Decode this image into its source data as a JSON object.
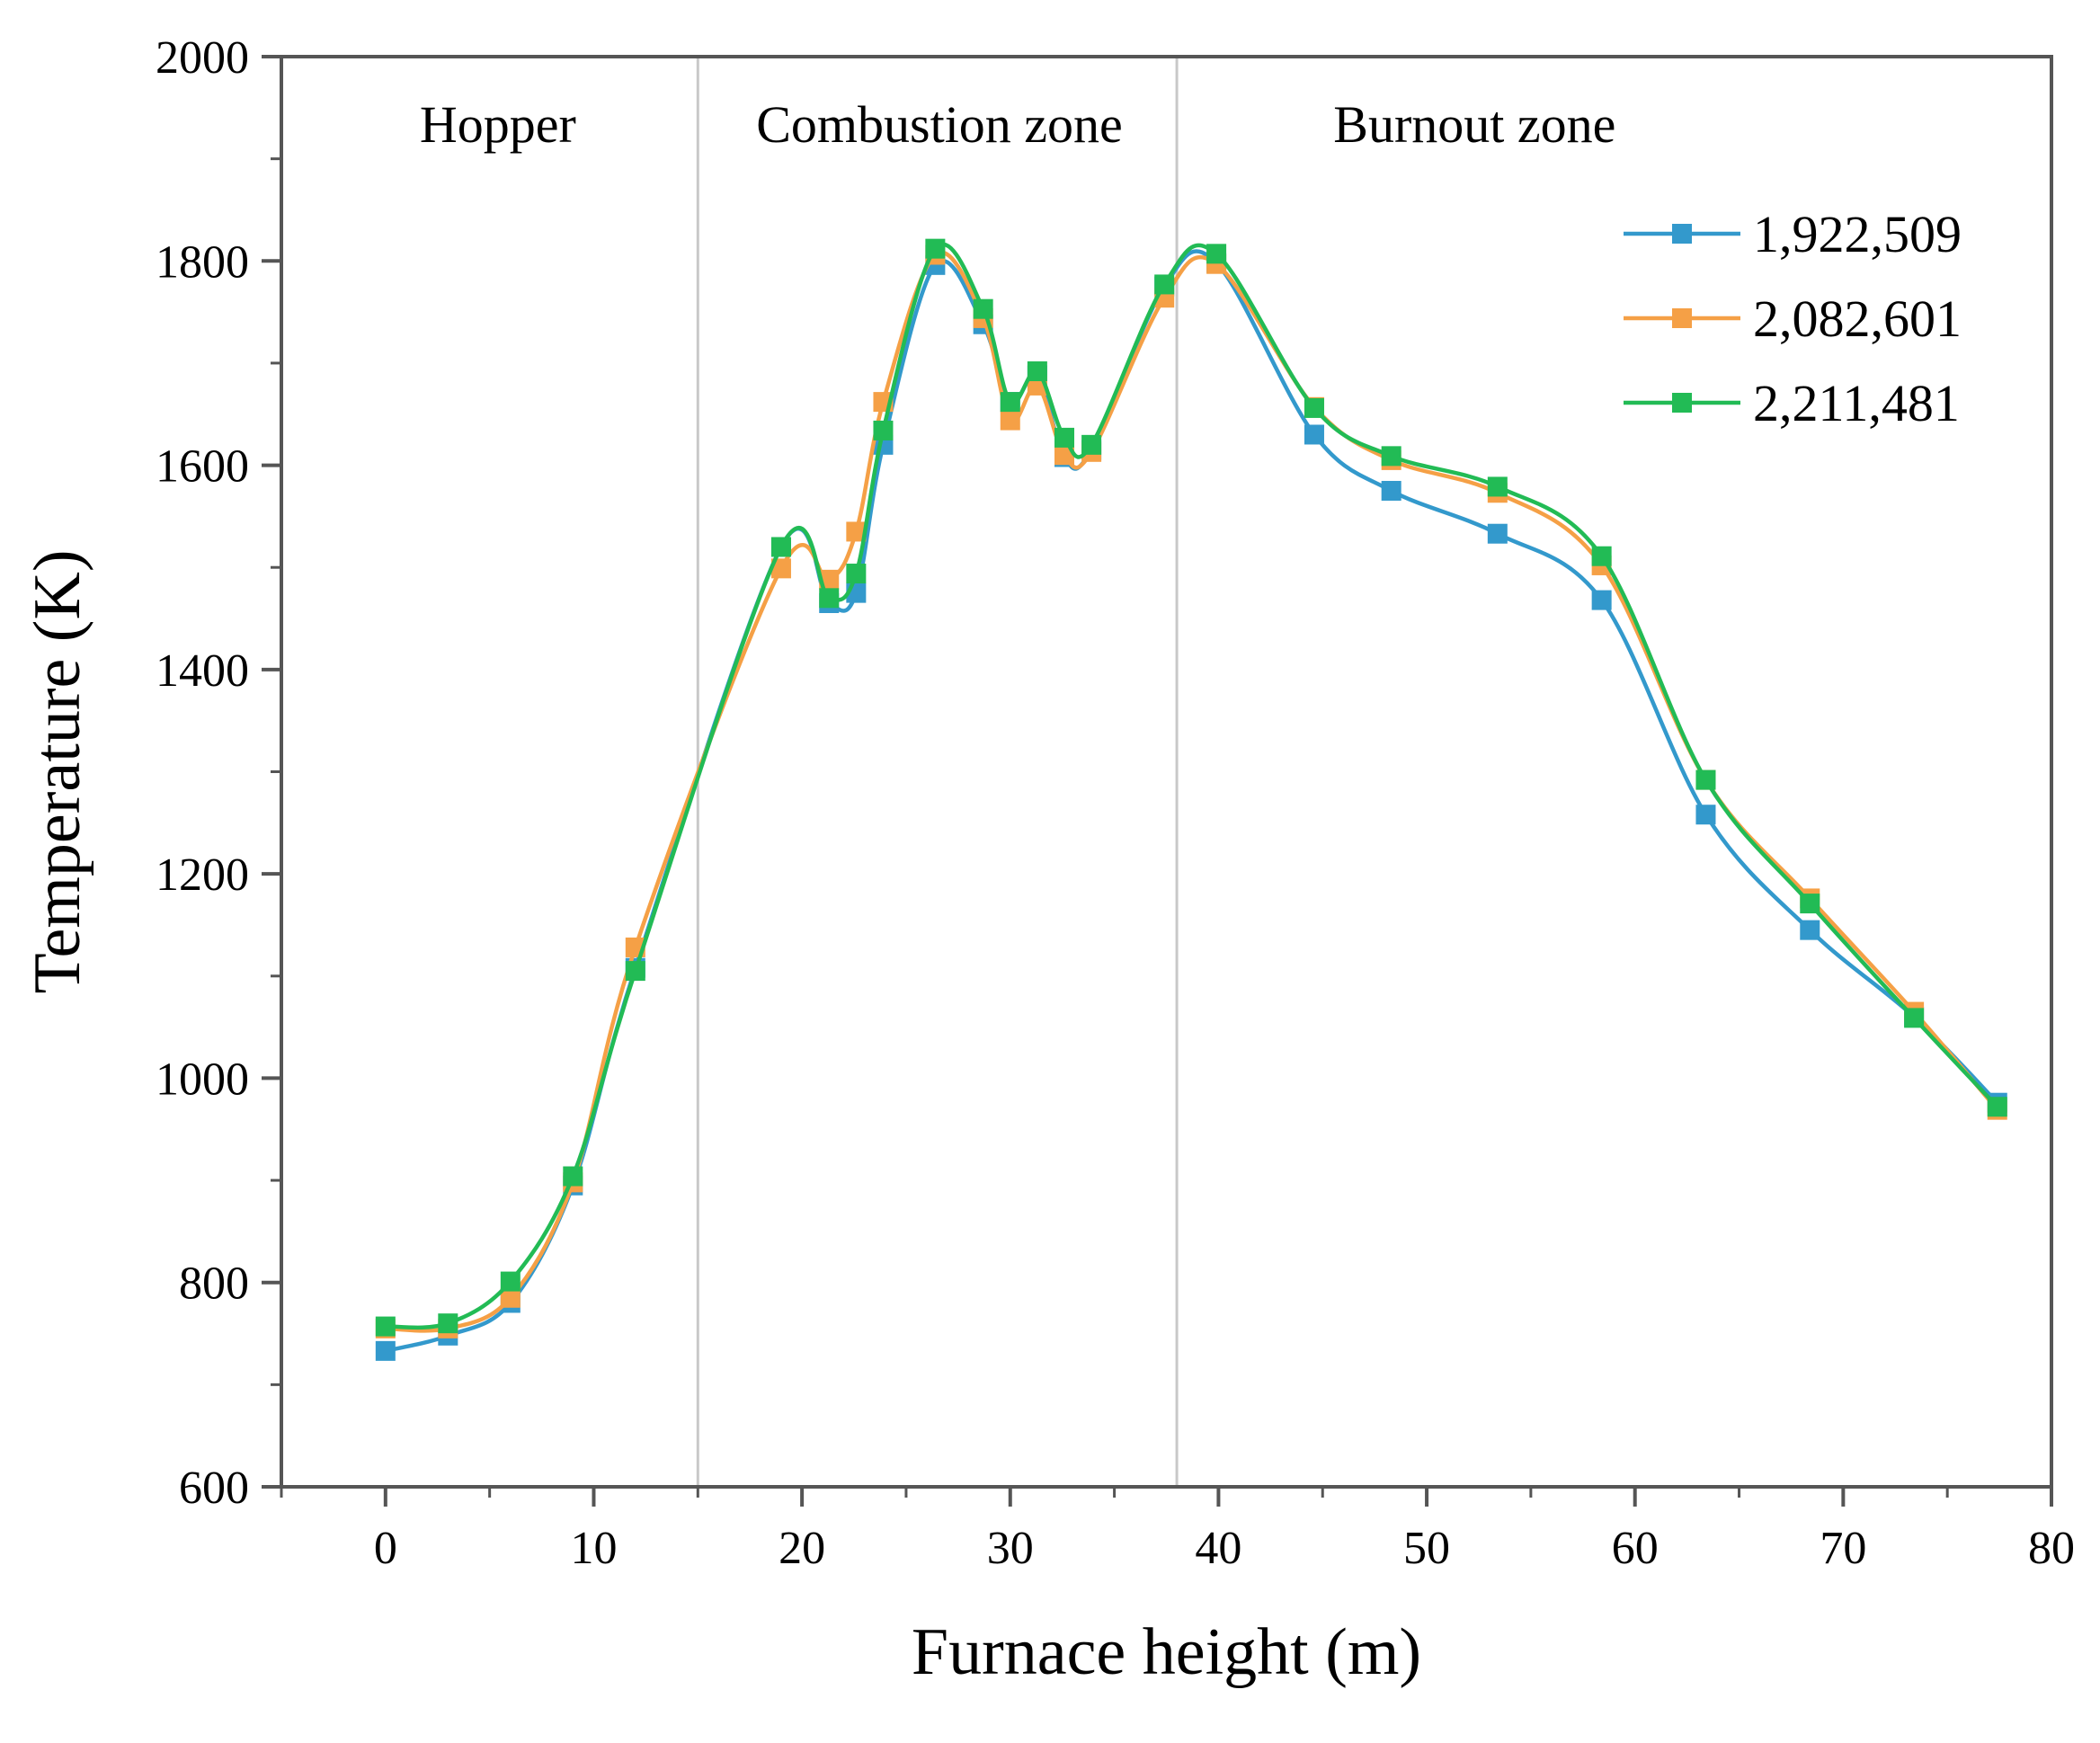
{
  "chart_data": {
    "type": "line",
    "title": "",
    "xlabel": "Furnace height (m)",
    "ylabel": "Temperature (K)",
    "xlim": [
      -5,
      80
    ],
    "ylim": [
      600,
      2000
    ],
    "xticks": [
      0,
      10,
      20,
      30,
      40,
      50,
      60,
      70,
      80
    ],
    "yticks": [
      600,
      800,
      1000,
      1200,
      1400,
      1600,
      1800,
      2000
    ],
    "grid": false,
    "legend_position": "top-right",
    "zone_dividers": [
      15,
      38
    ],
    "zones": [
      {
        "label": "Hopper",
        "x_center": 5.4
      },
      {
        "label": "Combustion zone",
        "x_center": 26.6
      },
      {
        "label": "Burnout zone",
        "x_center": 52.3
      }
    ],
    "series": [
      {
        "name": "1,922,509",
        "color": "#3399cc",
        "x": [
          0,
          3,
          6,
          9,
          12,
          19,
          21.3,
          22.6,
          23.9,
          26.4,
          28.7,
          30,
          31.3,
          32.6,
          33.9,
          37.4,
          39.9,
          44.6,
          48.3,
          53.4,
          58.4,
          63.4,
          68.4,
          73.4,
          77.4
        ],
        "values": [
          733,
          748,
          780,
          895,
          1108,
          1520,
          1465,
          1475,
          1620,
          1796,
          1738,
          1662,
          1688,
          1608,
          1615,
          1775,
          1798,
          1630,
          1575,
          1533,
          1468,
          1258,
          1145,
          1060,
          976
        ]
      },
      {
        "name": "2,082,601",
        "color": "#f5a046",
        "x": [
          0,
          3,
          6,
          9,
          12,
          19,
          21.3,
          22.6,
          23.9,
          26.4,
          28.7,
          30,
          31.3,
          32.6,
          33.9,
          37.4,
          39.9,
          44.6,
          48.3,
          53.4,
          58.4,
          63.4,
          68.4,
          73.4,
          77.4
        ],
        "values": [
          755,
          755,
          785,
          898,
          1128,
          1499,
          1488,
          1535,
          1662,
          1806,
          1744,
          1644,
          1678,
          1610,
          1613,
          1764,
          1797,
          1657,
          1605,
          1573,
          1502,
          1292,
          1176,
          1065,
          969
        ]
      },
      {
        "name": "2,211,481",
        "color": "#22bb55",
        "x": [
          0,
          3,
          6,
          9,
          12,
          19,
          21.3,
          22.6,
          23.9,
          26.4,
          28.7,
          30,
          31.3,
          32.6,
          33.9,
          37.4,
          39.9,
          44.6,
          48.3,
          53.4,
          58.4,
          63.4,
          68.4,
          73.4,
          77.4
        ],
        "values": [
          757,
          760,
          801,
          904,
          1105,
          1520,
          1470,
          1494,
          1634,
          1812,
          1753,
          1662,
          1692,
          1627,
          1620,
          1777,
          1807,
          1656,
          1609,
          1579,
          1511,
          1292,
          1171,
          1059,
          972
        ]
      }
    ]
  }
}
